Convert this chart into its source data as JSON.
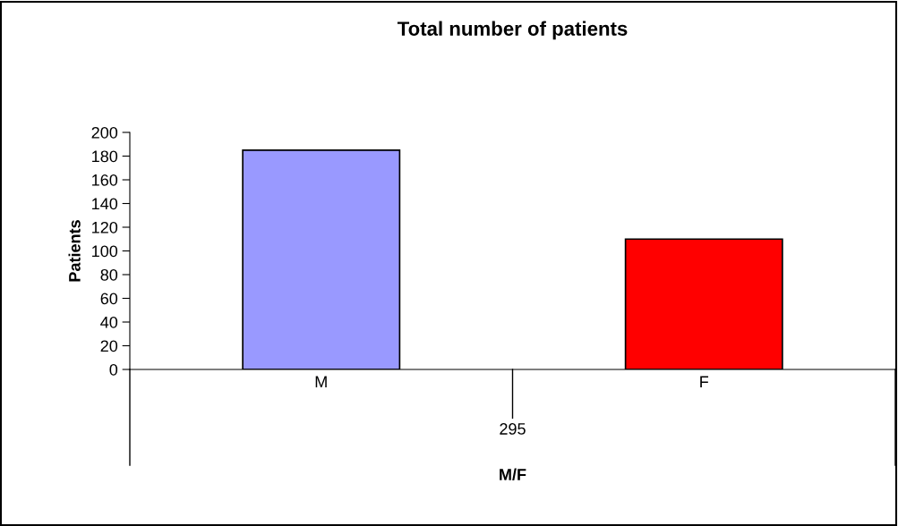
{
  "chart_data": {
    "type": "bar",
    "title": "Total number of patients",
    "ylabel": "Patients",
    "categories": [
      "M",
      "F"
    ],
    "values": [
      185,
      110
    ],
    "colors": [
      "#9999ff",
      "#ff0000"
    ],
    "ylim": [
      0,
      200
    ],
    "yticks": [
      0,
      20,
      40,
      60,
      80,
      100,
      120,
      140,
      160,
      180,
      200
    ],
    "annotations": [
      "295",
      "M/F"
    ],
    "grid": false,
    "legend": false
  }
}
